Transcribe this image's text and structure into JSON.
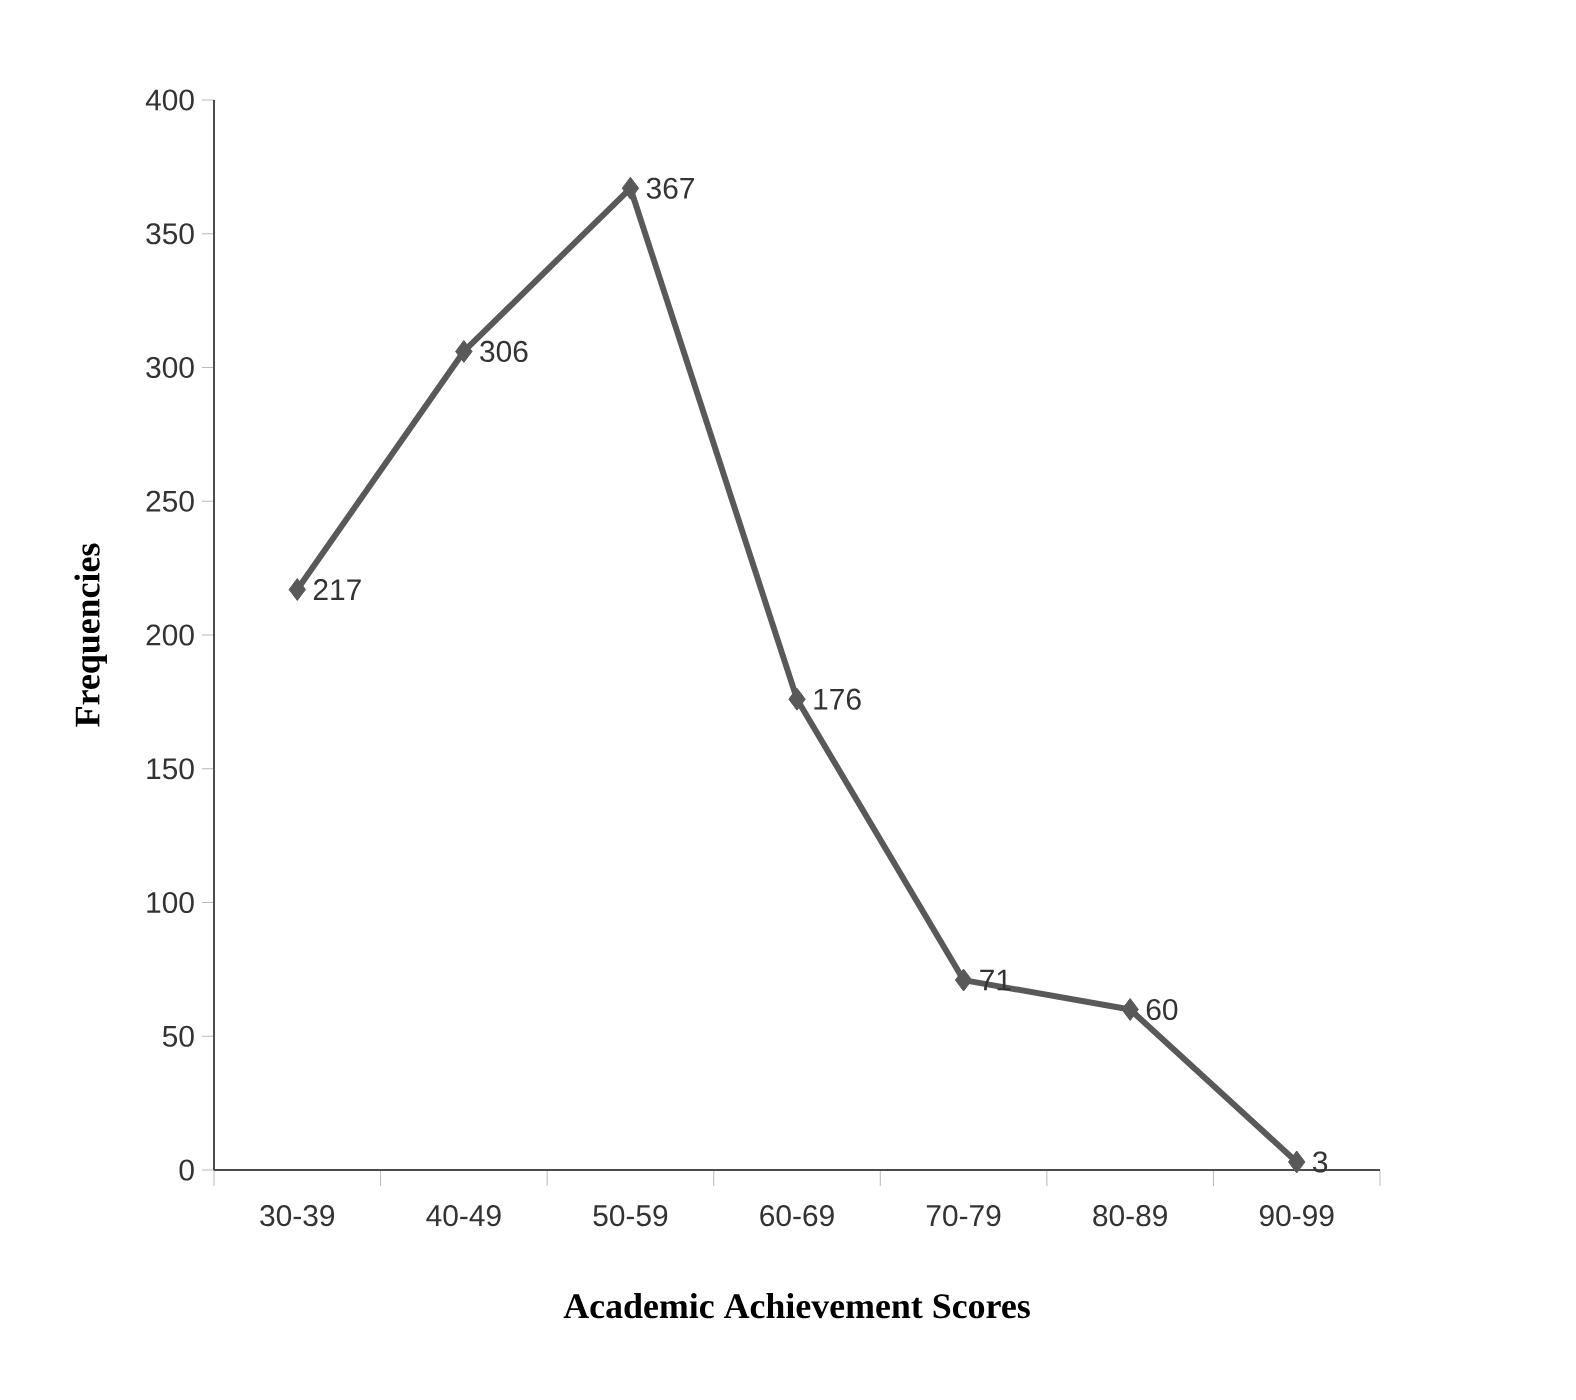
{
  "chart_data": {
    "type": "line",
    "xlabel": "Academic Achievement Scores",
    "ylabel": "Frequencies",
    "categories": [
      "30-39",
      "40-49",
      "50-59",
      "60-69",
      "70-79",
      "80-89",
      "90-99"
    ],
    "values": [
      217,
      306,
      367,
      176,
      71,
      60,
      3
    ],
    "color": "#595959",
    "marker": "diamond",
    "data_labels": true,
    "ylim": [
      0,
      400
    ],
    "yticks": [
      0,
      50,
      100,
      150,
      200,
      250,
      300,
      350,
      400
    ]
  }
}
